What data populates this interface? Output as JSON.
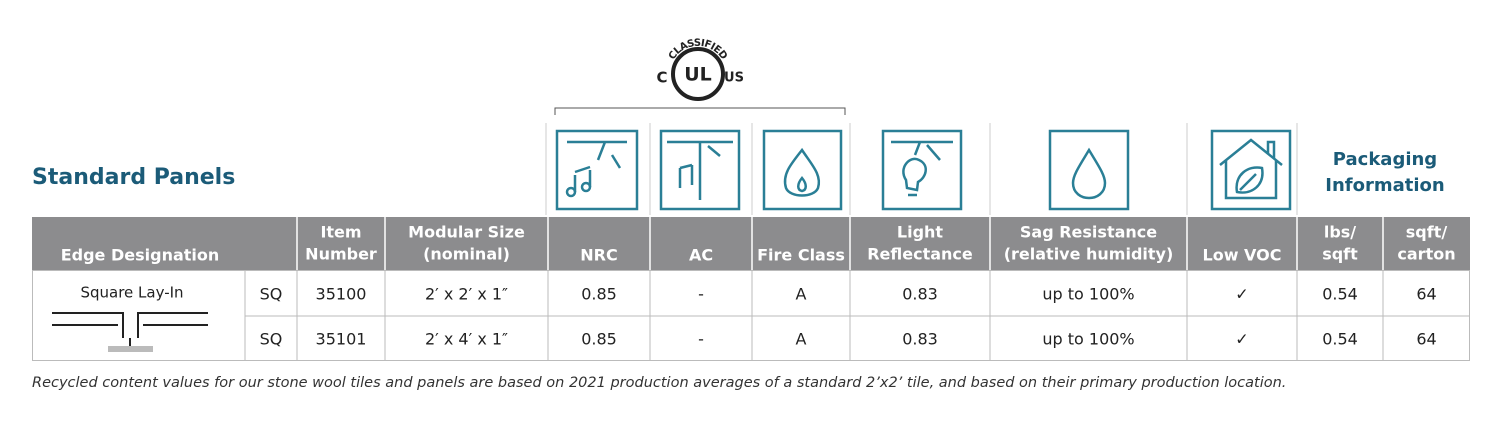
{
  "header": {
    "title": "Standard Panels",
    "packaging_label": [
      "Packaging",
      "Information"
    ]
  },
  "ul_logo": {
    "top": "CLASSIFIED",
    "left": "C",
    "mark": "UL",
    "right": "US"
  },
  "table": {
    "columns": [
      [
        "Edge Designation"
      ],
      [
        "Item",
        "Number"
      ],
      [
        "Modular Size",
        "(nominal)"
      ],
      [
        "NRC"
      ],
      [
        "AC"
      ],
      [
        "Fire Class"
      ],
      [
        "Light",
        "Reflectance"
      ],
      [
        "Sag Resistance",
        "(relative humidity)"
      ],
      [
        "Low VOC"
      ],
      [
        "lbs/",
        "sqft"
      ],
      [
        "sqft/",
        "carton"
      ]
    ],
    "edge_name": "Square Lay-In",
    "rows": [
      [
        "SQ",
        "35100",
        "2′ x 2′ x 1″",
        "0.85",
        "-",
        "A",
        "0.83",
        "up to 100%",
        "✓",
        "0.54",
        "64"
      ],
      [
        "SQ",
        "35101",
        "2′ x 4′ x 1″",
        "0.85",
        "-",
        "A",
        "0.83",
        "up to 100%",
        "✓",
        "0.54",
        "64"
      ]
    ]
  },
  "footnote": "Recycled content values for our stone wool tiles and panels are based on 2021 production averages of a standard 2’x2’ tile, and based on their primary production location."
}
